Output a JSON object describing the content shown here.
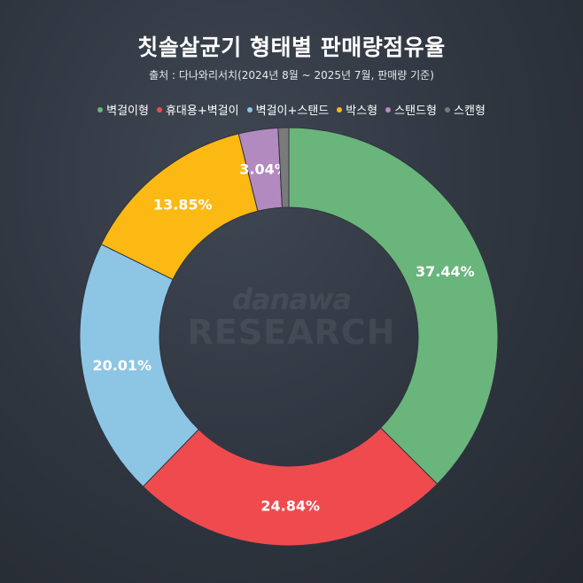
{
  "title": "칫솔살균기 형태별 판매량점유율",
  "subtitle": "출처 : 다나와리서치(2024년 8월 ~ 2025년 7월, 판매량 기준)",
  "watermark": {
    "line1": "danawa",
    "line2": "RESEARCH"
  },
  "chart_data": {
    "type": "pie",
    "title": "칫솔살균기 형태별 판매량점유율",
    "legend_position": "top",
    "donut": true,
    "unit": "%",
    "categories": [
      "벽걸이형",
      "휴대용+벽걸이",
      "벽걸이+스탠드",
      "박스형",
      "스탠드형",
      "스캔형"
    ],
    "values": [
      37.44,
      24.84,
      20.01,
      13.85,
      3.04,
      0.82
    ],
    "labels": [
      "37.44%",
      "24.84%",
      "20.01%",
      "13.85%",
      "3.04%",
      ""
    ],
    "colors": [
      "#6ab57c",
      "#ef4b4f",
      "#8dc6e4",
      "#fdb913",
      "#b28ac0",
      "#7a7a7a"
    ]
  }
}
